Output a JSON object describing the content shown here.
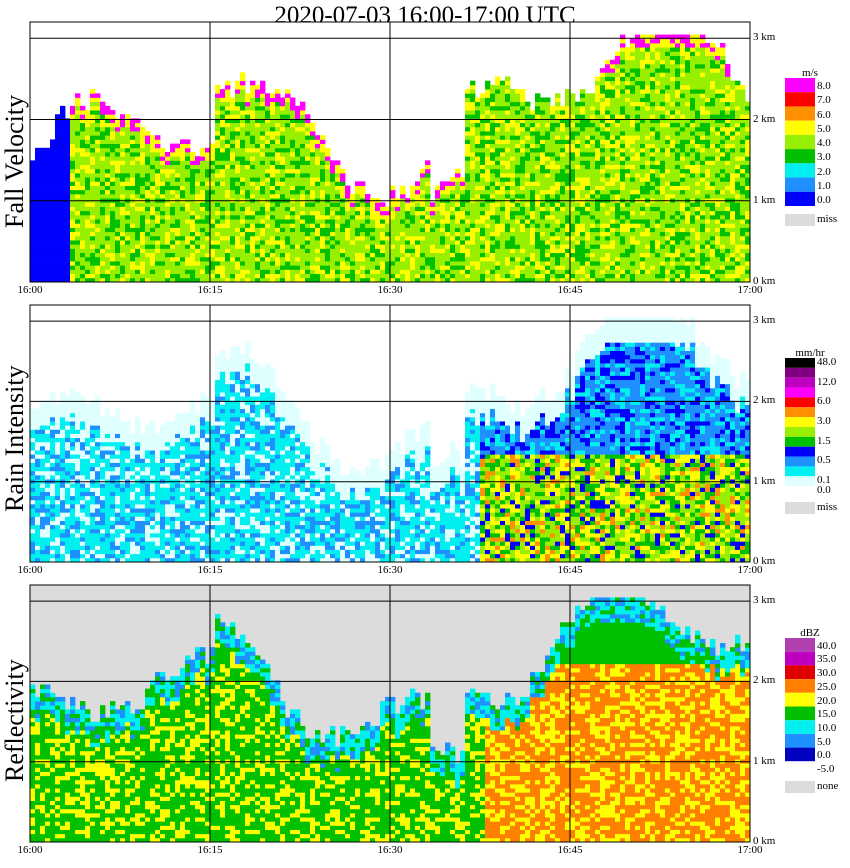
{
  "title": "2020-07-03   16:00-17:00 UTC",
  "chart_data": [
    {
      "type": "heatmap",
      "ylabel": "Fall Velocity",
      "unit": "m/s",
      "x_ticks": [
        "16:00",
        "16:15",
        "16:30",
        "16:45",
        "17:00"
      ],
      "height_ticks": [
        "0 km",
        "1 km",
        "2 km",
        "3 km"
      ],
      "ylim_km": [
        0,
        3.1
      ],
      "legend": [
        {
          "label": "8.0",
          "color": "#ff00ff"
        },
        {
          "label": "7.0",
          "color": "#ff0000"
        },
        {
          "label": "6.0",
          "color": "#ff9000"
        },
        {
          "label": "5.0",
          "color": "#ffff00"
        },
        {
          "label": "4.0",
          "color": "#98f000"
        },
        {
          "label": "3.0",
          "color": "#00c000"
        },
        {
          "label": "2.0",
          "color": "#00f0f0"
        },
        {
          "label": "1.0",
          "color": "#1e90ff"
        },
        {
          "label": "0.0",
          "color": "#0000ff"
        },
        {
          "label": "miss",
          "color": "#dcdcdc"
        }
      ]
    },
    {
      "type": "heatmap",
      "ylabel": "Rain Intensity",
      "unit": "mm/hr",
      "x_ticks": [
        "16:00",
        "16:15",
        "16:30",
        "16:45",
        "17:00"
      ],
      "height_ticks": [
        "0 km",
        "1 km",
        "2 km",
        "3 km"
      ],
      "ylim_km": [
        0,
        3.1
      ],
      "legend": [
        {
          "label": "48.0",
          "color": "#000000"
        },
        {
          "label": "",
          "color": "#800080"
        },
        {
          "label": "12.0",
          "color": "#c000c0"
        },
        {
          "label": "",
          "color": "#ff00ff"
        },
        {
          "label": "6.0",
          "color": "#ff0000"
        },
        {
          "label": "",
          "color": "#ff9000"
        },
        {
          "label": "3.0",
          "color": "#ffff00"
        },
        {
          "label": "",
          "color": "#98f000"
        },
        {
          "label": "1.5",
          "color": "#00c000"
        },
        {
          "label": "",
          "color": "#0000ff"
        },
        {
          "label": "0.5",
          "color": "#1e90ff"
        },
        {
          "label": "",
          "color": "#00f0f0"
        },
        {
          "label": "0.1",
          "color": "#e0ffff"
        },
        {
          "label": "0.0",
          "color": "#ffffff"
        },
        {
          "label": "miss",
          "color": "#dcdcdc"
        }
      ]
    },
    {
      "type": "heatmap",
      "ylabel": "Reflectivity",
      "unit": "dBZ",
      "x_ticks": [
        "16:00",
        "16:15",
        "16:30",
        "16:45",
        "17:00"
      ],
      "height_ticks": [
        "0 km",
        "1 km",
        "2 km",
        "3 km"
      ],
      "ylim_km": [
        0,
        3.1
      ],
      "legend": [
        {
          "label": "40.0",
          "color": "#b040b0"
        },
        {
          "label": "35.0",
          "color": "#c000c0"
        },
        {
          "label": "30.0",
          "color": "#e00000"
        },
        {
          "label": "25.0",
          "color": "#ff8000"
        },
        {
          "label": "20.0",
          "color": "#ffff00"
        },
        {
          "label": "15.0",
          "color": "#00c000"
        },
        {
          "label": "10.0",
          "color": "#00f0f0"
        },
        {
          "label": "5.0",
          "color": "#1e90ff"
        },
        {
          "label": "0.0",
          "color": "#0000c0"
        },
        {
          "label": "-5.0",
          "color": "#ffffff"
        },
        {
          "label": "none",
          "color": "#dcdcdc"
        }
      ]
    }
  ]
}
